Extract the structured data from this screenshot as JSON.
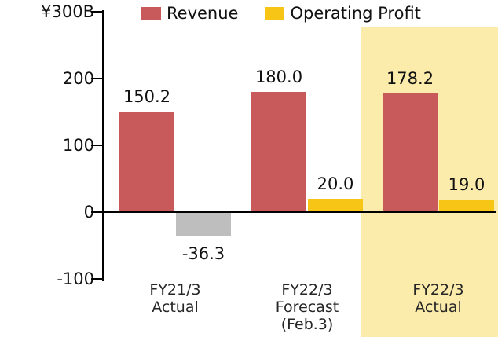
{
  "chart_data": {
    "type": "bar",
    "legend_position": "top",
    "grid": false,
    "ylim": [
      -100,
      300
    ],
    "unit_label": "¥300B",
    "yticks": [
      {
        "value": 300,
        "label": "¥300B"
      },
      {
        "value": 200,
        "label": "200"
      },
      {
        "value": 100,
        "label": "100"
      },
      {
        "value": 0,
        "label": "0"
      },
      {
        "value": -100,
        "label": "-100"
      }
    ],
    "categories": [
      {
        "lines": [
          "FY21/3",
          "Actual"
        ]
      },
      {
        "lines": [
          "FY22/3",
          "Forecast",
          "(Feb.3)"
        ]
      },
      {
        "lines": [
          "FY22/3",
          "Actual"
        ]
      }
    ],
    "series": [
      {
        "name": "Revenue",
        "color": "#C85A5C",
        "values": [
          150.2,
          180.0,
          178.2
        ],
        "labels": [
          "150.2",
          "180.0",
          "178.2"
        ]
      },
      {
        "name": "Operating Profit",
        "color": "#F7C515",
        "negative_color": "#BEBEBE",
        "values": [
          -36.3,
          20.0,
          19.0
        ],
        "labels": [
          "-36.3",
          "20.0",
          "19.0"
        ]
      }
    ],
    "highlight": {
      "category_index": 2,
      "color": "#FBECAC"
    }
  }
}
